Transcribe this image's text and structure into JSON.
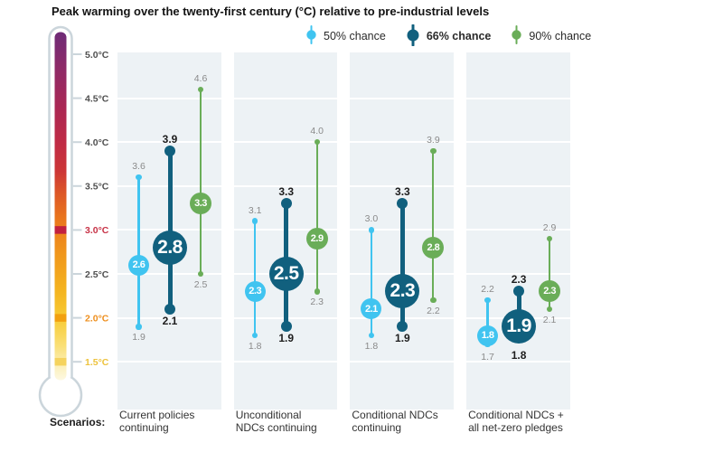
{
  "title": "Peak warming over the twenty-first century (°C) relative to pre-industrial levels",
  "scenarios_label": "Scenarios:",
  "colors": {
    "p50": "#40c4f0",
    "p66": "#11607e",
    "p90": "#6aad58",
    "column_bg": "#edf2f5",
    "gridline": "#ffffff",
    "label_gray": "#8a8a8a",
    "label_dark": "#1d1d1d",
    "thermo_outline": "#cbd5db"
  },
  "legend": {
    "items": [
      {
        "id": "p50",
        "label": "50% chance",
        "bold": false
      },
      {
        "id": "p66",
        "label": "66% chance",
        "bold": true
      },
      {
        "id": "p90",
        "label": "90% chance",
        "bold": false
      }
    ]
  },
  "thermometer": {
    "ticks": [
      {
        "label": "5.0°C",
        "value": 5.0,
        "color": "#4f4f4f"
      },
      {
        "label": "4.5°C",
        "value": 4.5,
        "color": "#4f4f4f"
      },
      {
        "label": "4.0°C",
        "value": 4.0,
        "color": "#4f4f4f"
      },
      {
        "label": "3.5°C",
        "value": 3.5,
        "color": "#4f4f4f"
      },
      {
        "label": "3.0°C",
        "value": 3.0,
        "color": "#c73246"
      },
      {
        "label": "2.5°C",
        "value": 2.5,
        "color": "#4f4f4f"
      },
      {
        "label": "2.0°C",
        "value": 2.0,
        "color": "#ee8f1e"
      },
      {
        "label": "1.5°C",
        "value": 1.5,
        "color": "#edc23c"
      }
    ],
    "bands": [
      {
        "value": 3.0,
        "color": "#c2203e"
      },
      {
        "value": 2.0,
        "color": "#f2a00f"
      },
      {
        "value": 1.5,
        "color": "#f5d35e"
      }
    ],
    "gradient": [
      [
        "0%",
        "#6e2b77"
      ],
      [
        "10%",
        "#8d2a68"
      ],
      [
        "22%",
        "#ab2753"
      ],
      [
        "32%",
        "#c02b45"
      ],
      [
        "40%",
        "#cc3636"
      ],
      [
        "46%",
        "#dc5527"
      ],
      [
        "54%",
        "#ea771c"
      ],
      [
        "64%",
        "#f0971c"
      ],
      [
        "74%",
        "#f4b31f"
      ],
      [
        "82%",
        "#f7ca33"
      ],
      [
        "90%",
        "#fadf75"
      ],
      [
        "96%",
        "#fcf0bb"
      ],
      [
        "100%",
        "#fdf8e2"
      ]
    ]
  },
  "chart_data": {
    "type": "dumbbell",
    "title": "Peak warming over the twenty-first century (°C) relative to pre-industrial levels",
    "unit": "°C",
    "ylim": [
      1.5,
      5.0
    ],
    "yticks": [
      "5.0°C",
      "4.5°C",
      "4.0°C",
      "3.5°C",
      "3.0°C",
      "2.5°C",
      "2.0°C",
      "1.5°C"
    ],
    "grid": true,
    "legend_position": "top",
    "categories": [
      "Current policies continuing",
      "Unconditional NDCs continuing",
      "Conditional NDCs continuing",
      "Conditional NDCs + all net-zero pledges"
    ],
    "category_lines": [
      [
        "Current policies",
        "continuing"
      ],
      [
        "Unconditional",
        "NDCs continuing"
      ],
      [
        "Conditional NDCs",
        "continuing"
      ],
      [
        "Conditional NDCs +",
        "all net-zero pledges"
      ]
    ],
    "series": [
      {
        "id": "p50",
        "name": "50% chance",
        "color": "#40c4f0",
        "points": [
          {
            "mid": "2.6",
            "low": "1.9",
            "high": "3.6"
          },
          {
            "mid": "2.3",
            "low": "1.8",
            "high": "3.1"
          },
          {
            "mid": "2.1",
            "low": "1.8",
            "high": "3.0"
          },
          {
            "mid": "1.8",
            "low": "1.7",
            "high": "2.2"
          }
        ]
      },
      {
        "id": "p66",
        "name": "66% chance",
        "color": "#11607e",
        "points": [
          {
            "mid": "2.8",
            "low": "2.1",
            "high": "3.9"
          },
          {
            "mid": "2.5",
            "low": "1.9",
            "high": "3.3"
          },
          {
            "mid": "2.3",
            "low": "1.9",
            "high": "3.3"
          },
          {
            "mid": "1.9",
            "low": "1.8",
            "high": "2.3"
          }
        ]
      },
      {
        "id": "p90",
        "name": "90% chance",
        "color": "#6aad58",
        "points": [
          {
            "mid": "3.3",
            "low": "2.5",
            "high": "4.6"
          },
          {
            "mid": "2.9",
            "low": "2.3",
            "high": "4.0"
          },
          {
            "mid": "2.8",
            "low": "2.2",
            "high": "3.9"
          },
          {
            "mid": "2.3",
            "low": "2.1",
            "high": "2.9"
          }
        ]
      }
    ]
  }
}
